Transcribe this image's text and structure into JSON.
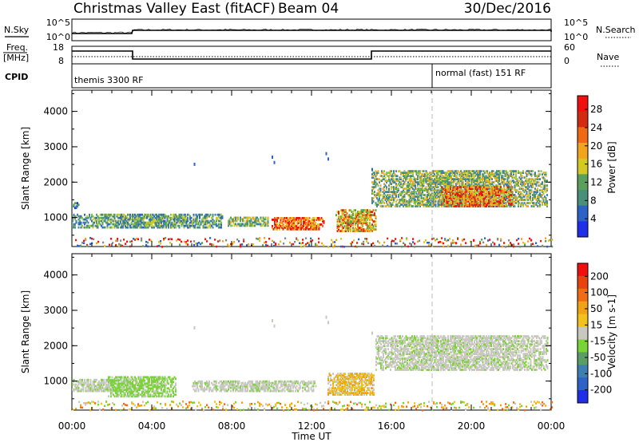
{
  "header": {
    "station": "Christmas Valley East (fitACF)",
    "beam": "Beam 04",
    "date": "30/Dec/2016"
  },
  "panels": {
    "nsky": {
      "left_label": "N.Sky",
      "ticks_left": [
        "10^5",
        "10^0"
      ],
      "right_label": "N.Search",
      "ticks_right": [
        "10^5",
        "10^0"
      ]
    },
    "freq": {
      "left_label_1": "Freq.",
      "left_label_2": "[MHz]",
      "ticks_left": [
        "18",
        "8"
      ],
      "right_label": "Nave",
      "ticks_right": [
        "60",
        "0"
      ]
    },
    "cpid": {
      "label": "CPID",
      "segments": [
        "themis 3300 RF",
        "normal (fast) 151 RF"
      ]
    }
  },
  "chart_data": [
    {
      "type": "heatmap",
      "name": "power",
      "ylabel": "Slant Range [km]",
      "xlim": [
        "00:00",
        "24:00"
      ],
      "ylim": [
        180,
        4600
      ],
      "yticks": [
        "4000",
        "3000",
        "2000",
        "1000"
      ],
      "colorbar": {
        "label": "Power [dB]",
        "ticks": [
          "28",
          "24",
          "20",
          "16",
          "12",
          "8",
          "4"
        ],
        "range": [
          0,
          31
        ],
        "colors": [
          "#1f2ee8",
          "#2d63c6",
          "#3d7fb0",
          "#4a8f7a",
          "#5aa05a",
          "#8cc63f",
          "#d4c827",
          "#f2a51c",
          "#f06a14",
          "#d42a12",
          "#f01010"
        ]
      },
      "regions": [
        {
          "t": [
            0.0,
            7.5
          ],
          "range": [
            750,
            1150
          ],
          "level": "low-mid"
        },
        {
          "t": [
            0.0,
            0.4
          ],
          "range": [
            1300,
            1450
          ],
          "level": "low"
        },
        {
          "t": [
            7.8,
            9.8
          ],
          "range": [
            800,
            1050
          ],
          "level": "mid"
        },
        {
          "t": [
            10.0,
            12.6
          ],
          "range": [
            700,
            1050
          ],
          "level": "high"
        },
        {
          "t": [
            13.2,
            15.2
          ],
          "range": [
            650,
            1250
          ],
          "level": "mid-high"
        },
        {
          "t": [
            15.0,
            23.8
          ],
          "range": [
            1350,
            2350
          ],
          "level": "mid"
        },
        {
          "t": [
            18.5,
            22.0
          ],
          "range": [
            1350,
            1900
          ],
          "level": "high"
        }
      ]
    },
    {
      "type": "heatmap",
      "name": "velocity",
      "ylabel": "Slant Range [km]",
      "xlabel": "Time UT",
      "xticks": [
        "00:00",
        "04:00",
        "08:00",
        "12:00",
        "16:00",
        "20:00",
        "00:00"
      ],
      "xlim": [
        "00:00",
        "24:00"
      ],
      "ylim": [
        180,
        4600
      ],
      "yticks": [
        "4000",
        "3000",
        "2000",
        "1000"
      ],
      "colorbar": {
        "label": "Velocity [m s-1]",
        "ticks": [
          "200",
          "100",
          "50",
          "15",
          "-15",
          "-50",
          "-100",
          "-200"
        ],
        "colors": [
          "#1f2ee8",
          "#2d63c6",
          "#3d7fb0",
          "#5a9e66",
          "#7bd437",
          "#c8c8c0",
          "#f2c21c",
          "#f0a314",
          "#ef6c14",
          "#e8420f",
          "#f01010"
        ]
      },
      "regions": [
        {
          "t": [
            0.0,
            3.0
          ],
          "range": [
            750,
            1100
          ],
          "level": "gray"
        },
        {
          "t": [
            1.8,
            5.2
          ],
          "range": [
            600,
            1150
          ],
          "level": "green"
        },
        {
          "t": [
            6.0,
            12.2
          ],
          "range": [
            750,
            1050
          ],
          "level": "gray"
        },
        {
          "t": [
            12.8,
            15.1
          ],
          "range": [
            650,
            1250
          ],
          "level": "orange"
        },
        {
          "t": [
            15.2,
            23.8
          ],
          "range": [
            1350,
            2300
          ],
          "level": "gray"
        }
      ]
    }
  ]
}
